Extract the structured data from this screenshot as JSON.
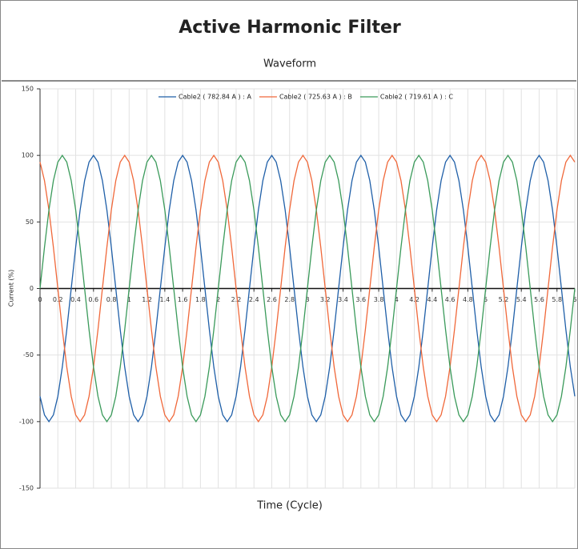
{
  "chart_data": {
    "type": "line",
    "title": "Active Harmonic Filter",
    "subtitle": "Waveform",
    "xlabel": "Time (Cycle)",
    "ylabel": "Current (%)",
    "x": [
      0,
      0.05,
      0.1,
      0.15,
      0.2,
      0.25,
      0.3,
      0.35,
      0.4,
      0.45,
      0.5,
      0.55,
      0.6,
      0.65,
      0.7,
      0.75,
      0.8,
      0.85,
      0.9,
      0.95,
      1,
      1.05,
      1.1,
      1.15,
      1.2,
      1.25,
      1.3,
      1.35,
      1.4,
      1.45,
      1.5,
      1.55,
      1.6,
      1.65,
      1.7,
      1.75,
      1.8,
      1.85,
      1.9,
      1.95,
      2,
      2.05,
      2.1,
      2.15,
      2.2,
      2.25,
      2.3,
      2.35,
      2.4,
      2.45,
      2.5,
      2.55,
      2.6,
      2.65,
      2.7,
      2.75,
      2.8,
      2.85,
      2.9,
      2.95,
      3,
      3.05,
      3.1,
      3.15,
      3.2,
      3.25,
      3.3,
      3.35,
      3.4,
      3.45,
      3.5,
      3.55,
      3.6,
      3.65,
      3.7,
      3.75,
      3.8,
      3.85,
      3.9,
      3.95,
      4,
      4.05,
      4.1,
      4.15,
      4.2,
      4.25,
      4.3,
      4.35,
      4.4,
      4.45,
      4.5,
      4.55,
      4.6,
      4.65,
      4.7,
      4.75,
      4.8,
      4.85,
      4.9,
      4.95,
      5,
      5.05,
      5.1,
      5.15,
      5.2,
      5.25,
      5.3,
      5.35,
      5.4,
      5.45,
      5.5,
      5.55,
      5.6,
      5.65,
      5.7,
      5.75,
      5.8,
      5.85,
      5.9,
      5.95,
      6
    ],
    "series": [
      {
        "name": "Cable2 ( 782.84 A ) : A",
        "color": "#1f5fa8",
        "values": [
          -81,
          -95,
          -100,
          -95,
          -81,
          -59,
          -31,
          0,
          31,
          59,
          81,
          95,
          100,
          95,
          81,
          59,
          31,
          0,
          -31,
          -59,
          -81,
          -95,
          -100,
          -95,
          -81,
          -59,
          -31,
          0,
          31,
          59,
          81,
          95,
          100,
          95,
          81,
          59,
          31,
          0,
          -31,
          -59,
          -81,
          -95,
          -100,
          -95,
          -81,
          -59,
          -31,
          0,
          31,
          59,
          81,
          95,
          100,
          95,
          81,
          59,
          31,
          0,
          -31,
          -59,
          -81,
          -95,
          -100,
          -95,
          -81,
          -59,
          -31,
          0,
          31,
          59,
          81,
          95,
          100,
          95,
          81,
          59,
          31,
          0,
          -31,
          -59,
          -81,
          -95,
          -100,
          -95,
          -81,
          -59,
          -31,
          0,
          31,
          59,
          81,
          95,
          100,
          95,
          81,
          59,
          31,
          0,
          -31,
          -59,
          -81,
          -95,
          -100,
          -95,
          -81,
          -59,
          -31,
          0,
          31,
          59,
          81,
          95,
          100,
          95,
          81,
          59,
          31,
          0,
          -31,
          -59,
          -81
        ]
      },
      {
        "name": "Cable2 ( 725.63 A ) : B",
        "color": "#f0683a",
        "values": [
          95,
          81,
          59,
          31,
          0,
          -31,
          -59,
          -81,
          -95,
          -100,
          -95,
          -81,
          -59,
          -31,
          0,
          31,
          59,
          81,
          95,
          100,
          95,
          81,
          59,
          31,
          0,
          -31,
          -59,
          -81,
          -95,
          -100,
          -95,
          -81,
          -59,
          -31,
          0,
          31,
          59,
          81,
          95,
          100,
          95,
          81,
          59,
          31,
          0,
          -31,
          -59,
          -81,
          -95,
          -100,
          -95,
          -81,
          -59,
          -31,
          0,
          31,
          59,
          81,
          95,
          100,
          95,
          81,
          59,
          31,
          0,
          -31,
          -59,
          -81,
          -95,
          -100,
          -95,
          -81,
          -59,
          -31,
          0,
          31,
          59,
          81,
          95,
          100,
          95,
          81,
          59,
          31,
          0,
          -31,
          -59,
          -81,
          -95,
          -100,
          -95,
          -81,
          -59,
          -31,
          0,
          31,
          59,
          81,
          95,
          100,
          95,
          81,
          59,
          31,
          0,
          -31,
          -59,
          -81,
          -95,
          -100,
          -95,
          -81,
          -59,
          -31,
          0,
          31,
          59,
          81,
          95,
          100,
          95
        ]
      },
      {
        "name": "Cable2 ( 719.61 A ) : C",
        "color": "#3a9a5a",
        "values": [
          0,
          31,
          59,
          81,
          95,
          100,
          95,
          81,
          59,
          31,
          0,
          -31,
          -59,
          -81,
          -95,
          -100,
          -95,
          -81,
          -59,
          -31,
          0,
          31,
          59,
          81,
          95,
          100,
          95,
          81,
          59,
          31,
          0,
          -31,
          -59,
          -81,
          -95,
          -100,
          -95,
          -81,
          -59,
          -31,
          0,
          31,
          59,
          81,
          95,
          100,
          95,
          81,
          59,
          31,
          0,
          -31,
          -59,
          -81,
          -95,
          -100,
          -95,
          -81,
          -59,
          -31,
          0,
          31,
          59,
          81,
          95,
          100,
          95,
          81,
          59,
          31,
          0,
          -31,
          -59,
          -81,
          -95,
          -100,
          -95,
          -81,
          -59,
          -31,
          0,
          31,
          59,
          81,
          95,
          100,
          95,
          81,
          59,
          31,
          0,
          -31,
          -59,
          -81,
          -95,
          -100,
          -95,
          -81,
          -59,
          -31,
          0,
          31,
          59,
          81,
          95,
          100,
          95,
          81,
          59,
          31,
          0,
          -31,
          -59,
          -81,
          -95,
          -100,
          -95,
          -81,
          -59,
          -31,
          0
        ]
      }
    ],
    "xlim": [
      0,
      6
    ],
    "xticks": [
      0,
      0.2,
      0.4,
      0.6,
      0.8,
      1,
      1.2,
      1.4,
      1.6,
      1.8,
      2,
      2.2,
      2.4,
      2.6,
      2.8,
      3,
      3.2,
      3.4,
      3.6,
      3.8,
      4,
      4.2,
      4.4,
      4.6,
      4.8,
      5,
      5.2,
      5.4,
      5.6,
      5.8,
      6
    ],
    "ylim": [
      -150,
      150
    ],
    "yticks": [
      -150,
      -100,
      -50,
      0,
      50,
      100,
      150
    ],
    "grid": true,
    "legend": "top"
  }
}
